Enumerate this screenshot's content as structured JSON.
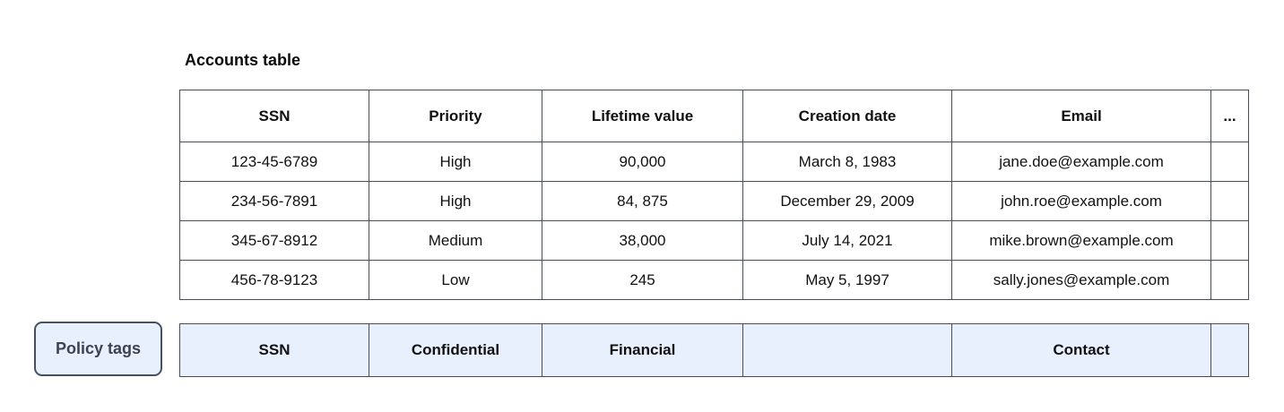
{
  "title": "Accounts table",
  "accounts_table": {
    "columns": [
      "SSN",
      "Priority",
      "Lifetime value",
      "Creation date",
      "Email",
      "..."
    ],
    "rows": [
      [
        "123-45-6789",
        "High",
        "90,000",
        "March 8, 1983",
        "jane.doe@example.com",
        ""
      ],
      [
        "234-56-7891",
        "High",
        "84, 875",
        "December 29, 2009",
        "john.roe@example.com",
        ""
      ],
      [
        "345-67-8912",
        "Medium",
        "38,000",
        "July 14, 2021",
        "mike.brown@example.com",
        ""
      ],
      [
        "456-78-9123",
        "Low",
        "245",
        "May 5, 1997",
        "sally.jones@example.com",
        ""
      ]
    ]
  },
  "policy_tags": {
    "label": "Policy tags",
    "tags": [
      "SSN",
      "Confidential",
      "Financial",
      "",
      "Contact",
      ""
    ]
  },
  "colors": {
    "tag-fill": "#e8f0fe",
    "table-border": "#4a4d52",
    "button-border": "#47505f",
    "button-text": "#3c4250"
  }
}
